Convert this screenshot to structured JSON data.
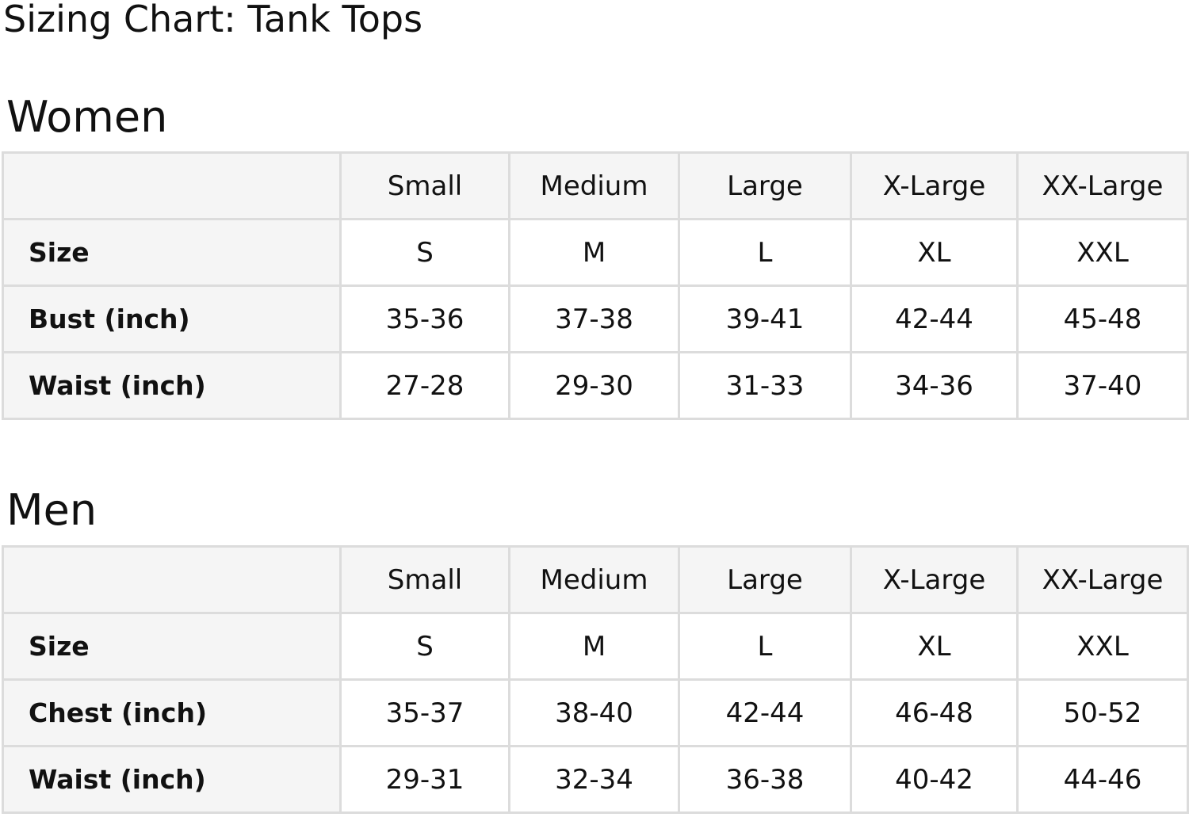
{
  "title": "Sizing Chart: Tank Tops",
  "columns": [
    "Small",
    "Medium",
    "Large",
    "X-Large",
    "XX-Large"
  ],
  "women": {
    "heading": "Women",
    "rows": [
      {
        "label": "Size",
        "values": [
          "S",
          "M",
          "L",
          "XL",
          "XXL"
        ]
      },
      {
        "label": "Bust (inch)",
        "values": [
          "35-36",
          "37-38",
          "39-41",
          "42-44",
          "45-48"
        ]
      },
      {
        "label": "Waist (inch)",
        "values": [
          "27-28",
          "29-30",
          "31-33",
          "34-36",
          "37-40"
        ]
      }
    ]
  },
  "men": {
    "heading": "Men",
    "rows": [
      {
        "label": "Size",
        "values": [
          "S",
          "M",
          "L",
          "XL",
          "XXL"
        ]
      },
      {
        "label": "Chest (inch)",
        "values": [
          "35-37",
          "38-40",
          "42-44",
          "46-48",
          "50-52"
        ]
      },
      {
        "label": "Waist (inch)",
        "values": [
          "29-31",
          "32-34",
          "36-38",
          "40-42",
          "44-46"
        ]
      }
    ]
  }
}
